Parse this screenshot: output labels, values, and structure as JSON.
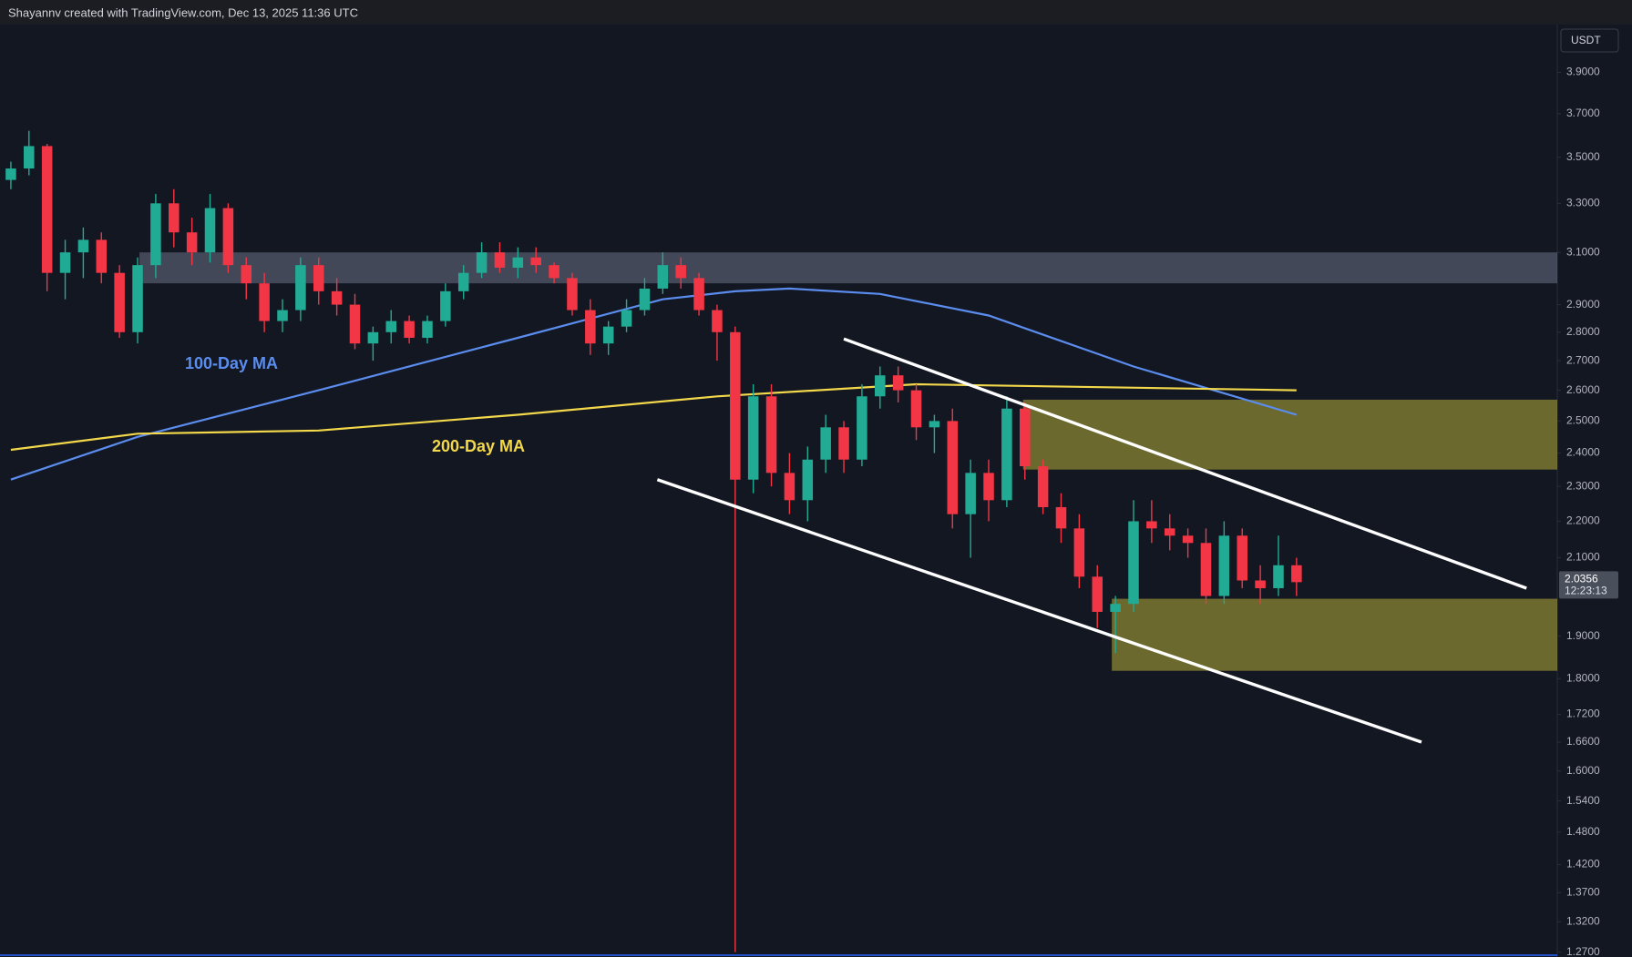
{
  "chart_data": {
    "type": "candlestick",
    "title": "Shayannv created with TradingView.com, Dec 13, 2025 11:36 UTC",
    "currency": "USDT",
    "log_scale": true,
    "grid": false,
    "up_color": "#22ab94",
    "down_color": "#f23645",
    "xlim": [
      -0.6,
      85.4
    ],
    "ylim": [
      1.265,
      4.145
    ],
    "yticks": [
      {
        "value": 3.9,
        "label": "3.9000"
      },
      {
        "value": 3.7,
        "label": "3.7000"
      },
      {
        "value": 3.5,
        "label": "3.5000"
      },
      {
        "value": 3.3,
        "label": "3.3000"
      },
      {
        "value": 3.1,
        "label": "3.1000"
      },
      {
        "value": 2.9,
        "label": "2.9000"
      },
      {
        "value": 2.8,
        "label": "2.8000"
      },
      {
        "value": 2.7,
        "label": "2.7000"
      },
      {
        "value": 2.6,
        "label": "2.6000"
      },
      {
        "value": 2.5,
        "label": "2.5000"
      },
      {
        "value": 2.4,
        "label": "2.4000"
      },
      {
        "value": 2.3,
        "label": "2.3000"
      },
      {
        "value": 2.2,
        "label": "2.2000"
      },
      {
        "value": 2.1,
        "label": "2.1000"
      },
      {
        "value": 1.9,
        "label": "1.9000"
      },
      {
        "value": 1.8,
        "label": "1.8000"
      },
      {
        "value": 1.72,
        "label": "1.7200"
      },
      {
        "value": 1.66,
        "label": "1.6600"
      },
      {
        "value": 1.6,
        "label": "1.6000"
      },
      {
        "value": 1.54,
        "label": "1.5400"
      },
      {
        "value": 1.48,
        "label": "1.4800"
      },
      {
        "value": 1.42,
        "label": "1.4200"
      },
      {
        "value": 1.37,
        "label": "1.3700"
      },
      {
        "value": 1.32,
        "label": "1.3200"
      },
      {
        "value": 1.27,
        "label": "1.2700"
      }
    ],
    "open": [
      3.4,
      3.45,
      3.55,
      3.02,
      3.1,
      3.15,
      3.02,
      2.8,
      3.05,
      3.3,
      3.18,
      3.1,
      3.28,
      3.05,
      2.98,
      2.84,
      2.88,
      3.05,
      2.95,
      2.9,
      2.76,
      2.8,
      2.84,
      2.78,
      2.84,
      2.95,
      3.02,
      3.1,
      3.04,
      3.08,
      3.05,
      3.0,
      2.88,
      2.76,
      2.82,
      2.88,
      2.96,
      3.05,
      3.0,
      2.88,
      2.8,
      2.32,
      2.58,
      2.34,
      2.26,
      2.38,
      2.48,
      2.38,
      2.58,
      2.65,
      2.6,
      2.48,
      2.5,
      2.22,
      2.34,
      2.26,
      2.54,
      2.36,
      2.24,
      2.18,
      2.05,
      1.96,
      1.98,
      2.2,
      2.18,
      2.16,
      2.14,
      2.0,
      2.16,
      2.04,
      2.02,
      2.08
    ],
    "high": [
      3.48,
      3.62,
      3.56,
      3.15,
      3.2,
      3.18,
      3.05,
      3.08,
      3.34,
      3.36,
      3.24,
      3.34,
      3.3,
      3.08,
      3.02,
      2.92,
      3.08,
      3.08,
      3.0,
      2.94,
      2.82,
      2.88,
      2.86,
      2.86,
      2.98,
      3.05,
      3.14,
      3.14,
      3.12,
      3.12,
      3.06,
      3.02,
      2.92,
      2.84,
      2.92,
      3.0,
      3.1,
      3.08,
      3.02,
      2.9,
      2.82,
      2.62,
      2.62,
      2.4,
      2.42,
      2.52,
      2.5,
      2.62,
      2.68,
      2.68,
      2.62,
      2.52,
      2.54,
      2.38,
      2.38,
      2.58,
      2.56,
      2.38,
      2.28,
      2.22,
      2.08,
      2.0,
      2.26,
      2.26,
      2.22,
      2.18,
      2.18,
      2.2,
      2.18,
      2.08,
      2.16,
      2.1
    ],
    "low": [
      3.36,
      3.42,
      2.95,
      2.92,
      3.0,
      2.98,
      2.78,
      2.76,
      3.0,
      3.12,
      3.05,
      3.06,
      3.02,
      2.92,
      2.8,
      2.8,
      2.84,
      2.9,
      2.86,
      2.74,
      2.7,
      2.76,
      2.76,
      2.76,
      2.82,
      2.92,
      3.0,
      3.02,
      3.0,
      3.02,
      2.98,
      2.86,
      2.72,
      2.72,
      2.8,
      2.86,
      2.94,
      2.96,
      2.86,
      2.7,
      1.27,
      2.28,
      2.3,
      2.22,
      2.2,
      2.34,
      2.34,
      2.36,
      2.54,
      2.56,
      2.44,
      2.4,
      2.18,
      2.1,
      2.2,
      2.24,
      2.32,
      2.22,
      2.14,
      2.02,
      1.92,
      1.86,
      1.96,
      2.14,
      2.12,
      2.1,
      1.98,
      1.98,
      2.02,
      1.98,
      2.0,
      2.0
    ],
    "close": [
      3.45,
      3.55,
      3.02,
      3.1,
      3.15,
      3.02,
      2.8,
      3.05,
      3.3,
      3.18,
      3.1,
      3.28,
      3.05,
      2.98,
      2.84,
      2.88,
      3.05,
      2.95,
      2.9,
      2.76,
      2.8,
      2.84,
      2.78,
      2.84,
      2.95,
      3.02,
      3.1,
      3.04,
      3.08,
      3.05,
      3.0,
      2.88,
      2.76,
      2.82,
      2.88,
      2.96,
      3.05,
      3.0,
      2.88,
      2.8,
      2.32,
      2.58,
      2.34,
      2.26,
      2.38,
      2.48,
      2.38,
      2.58,
      2.65,
      2.6,
      2.48,
      2.5,
      2.22,
      2.34,
      2.26,
      2.54,
      2.36,
      2.24,
      2.18,
      2.05,
      1.96,
      1.98,
      2.2,
      2.18,
      2.16,
      2.14,
      2.0,
      2.16,
      2.04,
      2.02,
      2.08,
      2.0356
    ],
    "moving_averages": [
      {
        "name": "100-Day MA",
        "color": "#5b8def",
        "x": [
          0,
          7,
          17,
          28,
          36,
          40,
          43,
          48,
          54,
          62,
          71
        ],
        "values": [
          2.32,
          2.45,
          2.6,
          2.78,
          2.92,
          2.95,
          2.96,
          2.94,
          2.86,
          2.68,
          2.52
        ]
      },
      {
        "name": "200-Day MA",
        "color": "#f2d84a",
        "x": [
          0,
          7,
          17,
          28,
          39,
          50,
          71
        ],
        "values": [
          2.41,
          2.46,
          2.47,
          2.52,
          2.58,
          2.62,
          2.6
        ]
      }
    ],
    "zones": [
      {
        "color": "rgba(130,140,165,0.42)",
        "x_start": 7.1,
        "y": [
          2.98,
          3.1
        ]
      },
      {
        "color": "rgba(190,180,60,0.52)",
        "x_start": 55.9,
        "y": [
          2.35,
          2.569
        ]
      },
      {
        "color": "rgba(190,180,60,0.52)",
        "x_start": 60.8,
        "y": [
          1.818,
          1.993
        ]
      }
    ],
    "trendlines": [
      {
        "color": "#ffffff",
        "x": [
          46.0,
          83.7
        ],
        "y": [
          2.776,
          2.02
        ]
      },
      {
        "color": "#ffffff",
        "x": [
          35.7,
          77.9
        ],
        "y": [
          2.32,
          1.66
        ]
      }
    ],
    "last_price": 2.0356,
    "countdown": "12:23:13"
  }
}
